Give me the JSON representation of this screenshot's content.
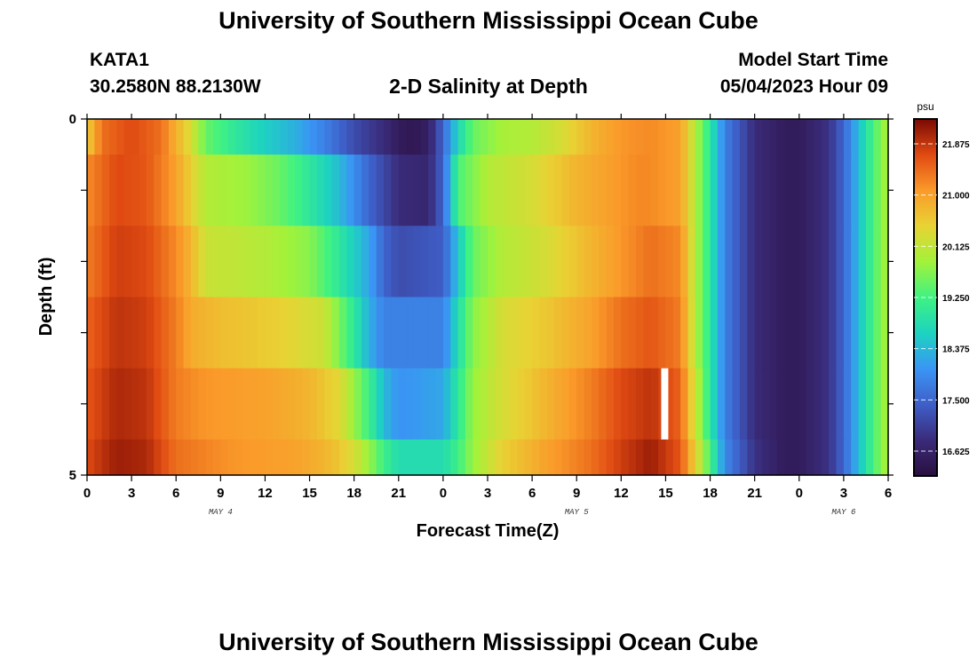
{
  "page": {
    "title": "University of Southern Mississippi Ocean Cube",
    "footer_title": "University of Southern Mississippi Ocean Cube"
  },
  "header": {
    "station": "KATA1",
    "coords": "30.2580N  88.2130W",
    "subtitle": "2-D Salinity at Depth",
    "model_label": "Model Start Time",
    "model_time": "05/04/2023 Hour 09"
  },
  "chart_data": {
    "type": "heatmap",
    "title": "2-D Salinity at Depth",
    "xlabel": "Forecast Time(Z)",
    "ylabel": "Depth (ft)",
    "ylim": [
      0,
      5
    ],
    "y_ticks": [
      "0",
      "5"
    ],
    "x_tick_labels": [
      "0",
      "3",
      "6",
      "9",
      "12",
      "15",
      "18",
      "21",
      "0",
      "3",
      "6",
      "9",
      "12",
      "15",
      "18",
      "21",
      "0",
      "3",
      "6"
    ],
    "date_labels": [
      {
        "label": "MAY 4",
        "x_hour": 9
      },
      {
        "label": "MAY 5",
        "x_hour": 33
      },
      {
        "label": "MAY 6",
        "x_hour": 51
      }
    ],
    "xlim_hours": [
      0,
      54
    ],
    "colorbar": {
      "unit": "psu",
      "min": 16.2,
      "max": 22.3,
      "ticks": [
        "21.875",
        "21.000",
        "20.125",
        "19.250",
        "18.375",
        "17.500",
        "16.625"
      ]
    },
    "gap": {
      "layer": 4,
      "x_hour": 39
    },
    "layers": [
      {
        "depth_range": [
          0,
          0.5
        ],
        "keys": [
          [
            0,
            20.5
          ],
          [
            1,
            21.4
          ],
          [
            3,
            21.7
          ],
          [
            5,
            21.4
          ],
          [
            7,
            20.3
          ],
          [
            8,
            19.5
          ],
          [
            10,
            19.0
          ],
          [
            12,
            18.6
          ],
          [
            14,
            18.3
          ],
          [
            16,
            17.8
          ],
          [
            18,
            17.2
          ],
          [
            20,
            16.8
          ],
          [
            21,
            16.5
          ],
          [
            22,
            16.4
          ],
          [
            23,
            16.6
          ],
          [
            24,
            17.5
          ],
          [
            25,
            18.7
          ],
          [
            26,
            19.5
          ],
          [
            28,
            19.9
          ],
          [
            30,
            20.0
          ],
          [
            32,
            20.3
          ],
          [
            34,
            20.8
          ],
          [
            36,
            21.1
          ],
          [
            38,
            21.2
          ],
          [
            40,
            21.0
          ],
          [
            41,
            20.0
          ],
          [
            42,
            19.0
          ],
          [
            43,
            17.8
          ],
          [
            45,
            16.8
          ],
          [
            47,
            16.5
          ],
          [
            48,
            16.5
          ],
          [
            50,
            16.9
          ],
          [
            51,
            17.5
          ],
          [
            52,
            18.4
          ],
          [
            53,
            19.3
          ],
          [
            54,
            20.0
          ]
        ]
      },
      {
        "depth_range": [
          0.5,
          1.5
        ],
        "keys": [
          [
            0,
            21.2
          ],
          [
            2,
            21.7
          ],
          [
            4,
            21.6
          ],
          [
            6,
            21.0
          ],
          [
            7,
            20.5
          ],
          [
            8,
            20.0
          ],
          [
            11,
            19.8
          ],
          [
            13,
            19.5
          ],
          [
            15,
            19.0
          ],
          [
            17,
            18.4
          ],
          [
            19,
            17.5
          ],
          [
            21,
            16.8
          ],
          [
            23,
            16.7
          ],
          [
            24,
            17.5
          ],
          [
            25,
            19.3
          ],
          [
            27,
            20.0
          ],
          [
            30,
            20.3
          ],
          [
            33,
            20.8
          ],
          [
            35,
            21.0
          ],
          [
            37,
            21.2
          ],
          [
            38,
            21.2
          ],
          [
            40,
            21.0
          ],
          [
            41,
            20.0
          ],
          [
            42,
            19.0
          ],
          [
            43,
            17.8
          ],
          [
            45,
            16.8
          ],
          [
            47,
            16.5
          ],
          [
            48,
            16.5
          ],
          [
            50,
            16.9
          ],
          [
            51,
            17.5
          ],
          [
            52,
            18.4
          ],
          [
            53,
            19.3
          ],
          [
            54,
            20.0
          ]
        ]
      },
      {
        "depth_range": [
          1.5,
          2.5
        ],
        "keys": [
          [
            0,
            21.3
          ],
          [
            2,
            21.8
          ],
          [
            4,
            21.7
          ],
          [
            6,
            21.2
          ],
          [
            7,
            20.8
          ],
          [
            8,
            20.2
          ],
          [
            12,
            20.0
          ],
          [
            15,
            19.7
          ],
          [
            17,
            19.0
          ],
          [
            19,
            18.2
          ],
          [
            20,
            17.5
          ],
          [
            21,
            17.2
          ],
          [
            24,
            17.4
          ],
          [
            25,
            18.5
          ],
          [
            26,
            19.5
          ],
          [
            28,
            20.0
          ],
          [
            31,
            20.3
          ],
          [
            34,
            20.8
          ],
          [
            36,
            21.1
          ],
          [
            38,
            21.4
          ],
          [
            40,
            21.2
          ],
          [
            41,
            20.0
          ],
          [
            42,
            19.0
          ],
          [
            43,
            17.8
          ],
          [
            45,
            16.8
          ],
          [
            47,
            16.5
          ],
          [
            48,
            16.5
          ],
          [
            50,
            16.9
          ],
          [
            51,
            17.5
          ],
          [
            52,
            18.4
          ],
          [
            53,
            19.3
          ],
          [
            54,
            20.0
          ]
        ]
      },
      {
        "depth_range": [
          2.5,
          3.5
        ],
        "keys": [
          [
            0,
            21.5
          ],
          [
            2,
            21.9
          ],
          [
            4,
            21.8
          ],
          [
            6,
            21.3
          ],
          [
            7,
            20.9
          ],
          [
            9,
            20.7
          ],
          [
            13,
            20.5
          ],
          [
            16,
            20.2
          ],
          [
            17,
            19.6
          ],
          [
            18,
            19.0
          ],
          [
            19,
            18.3
          ],
          [
            20,
            17.8
          ],
          [
            24,
            17.8
          ],
          [
            25,
            18.8
          ],
          [
            26,
            19.7
          ],
          [
            28,
            20.3
          ],
          [
            31,
            20.6
          ],
          [
            34,
            21.0
          ],
          [
            36,
            21.4
          ],
          [
            38,
            21.6
          ],
          [
            40,
            21.3
          ],
          [
            41,
            20.0
          ],
          [
            42,
            19.0
          ],
          [
            43,
            17.8
          ],
          [
            45,
            16.8
          ],
          [
            47,
            16.5
          ],
          [
            48,
            16.5
          ],
          [
            50,
            16.9
          ],
          [
            51,
            17.5
          ],
          [
            52,
            18.4
          ],
          [
            53,
            19.3
          ],
          [
            54,
            20.0
          ]
        ]
      },
      {
        "depth_range": [
          3.5,
          4.5
        ],
        "keys": [
          [
            0,
            21.6
          ],
          [
            2,
            22.0
          ],
          [
            4,
            21.9
          ],
          [
            6,
            21.3
          ],
          [
            8,
            21.1
          ],
          [
            12,
            21.0
          ],
          [
            15,
            20.8
          ],
          [
            17,
            20.4
          ],
          [
            18,
            19.8
          ],
          [
            19,
            19.2
          ],
          [
            20,
            18.4
          ],
          [
            21,
            18.0
          ],
          [
            24,
            18.2
          ],
          [
            25,
            19.0
          ],
          [
            26,
            19.8
          ],
          [
            28,
            20.3
          ],
          [
            31,
            20.8
          ],
          [
            34,
            21.3
          ],
          [
            36,
            21.7
          ],
          [
            38,
            21.9
          ],
          [
            40,
            21.5
          ],
          [
            41,
            20.2
          ],
          [
            42,
            19.0
          ],
          [
            43,
            17.8
          ],
          [
            45,
            16.8
          ],
          [
            47,
            16.5
          ],
          [
            48,
            16.5
          ],
          [
            50,
            16.9
          ],
          [
            51,
            17.5
          ],
          [
            52,
            18.4
          ],
          [
            53,
            19.3
          ],
          [
            54,
            20.0
          ]
        ]
      },
      {
        "depth_range": [
          4.5,
          5
        ],
        "keys": [
          [
            0,
            21.7
          ],
          [
            2,
            22.1
          ],
          [
            4,
            22.0
          ],
          [
            6,
            21.4
          ],
          [
            10,
            21.1
          ],
          [
            14,
            21.0
          ],
          [
            16,
            20.8
          ],
          [
            17,
            20.6
          ],
          [
            18,
            20.3
          ],
          [
            19,
            19.8
          ],
          [
            20,
            19.2
          ],
          [
            21,
            18.8
          ],
          [
            24,
            18.8
          ],
          [
            25,
            19.2
          ],
          [
            26,
            19.8
          ],
          [
            28,
            20.5
          ],
          [
            31,
            21.0
          ],
          [
            34,
            21.4
          ],
          [
            36,
            21.8
          ],
          [
            38,
            22.1
          ],
          [
            40,
            21.6
          ],
          [
            41,
            20.5
          ],
          [
            42,
            19.3
          ],
          [
            43,
            17.9
          ],
          [
            45,
            16.9
          ],
          [
            47,
            16.5
          ],
          [
            48,
            16.5
          ],
          [
            50,
            16.9
          ],
          [
            51,
            17.5
          ],
          [
            52,
            18.4
          ],
          [
            53,
            19.3
          ],
          [
            54,
            20.0
          ]
        ]
      }
    ]
  }
}
